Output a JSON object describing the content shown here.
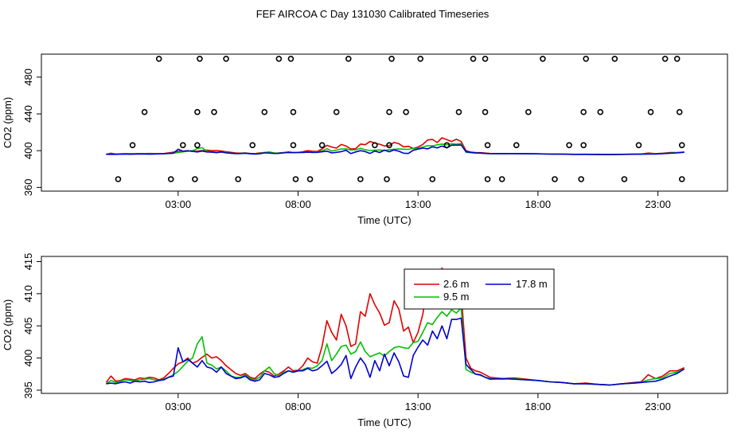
{
  "title": "FEF AIRCOA C  Day 131030  Calibrated Timeseries",
  "colors": {
    "series_2_6m": "#e00000",
    "series_9_5m": "#00c000",
    "series_17_8m": "#0000d0",
    "axis": "#000000"
  },
  "chart_data": [
    {
      "id": "top",
      "type": "line+scatter",
      "xlabel": "Time (UTC)",
      "ylabel": "CO2 (ppm)",
      "xlim": [
        -2.7,
        25.9
      ],
      "ylim": [
        356,
        505
      ],
      "xticks": [
        3,
        8,
        13,
        18,
        23
      ],
      "xtick_labels": [
        "03:00",
        "08:00",
        "13:00",
        "18:00",
        "23:00"
      ],
      "yticks": [
        360,
        400,
        440,
        480
      ],
      "ytick_labels": [
        "360",
        "400",
        "440",
        "480"
      ],
      "outliers": [
        {
          "x": 0.5,
          "y": 369
        },
        {
          "x": 1.1,
          "y": 406
        },
        {
          "x": 1.6,
          "y": 442
        },
        {
          "x": 2.2,
          "y": 500
        },
        {
          "x": 2.7,
          "y": 369
        },
        {
          "x": 3.2,
          "y": 406
        },
        {
          "x": 3.7,
          "y": 369
        },
        {
          "x": 3.8,
          "y": 406
        },
        {
          "x": 3.8,
          "y": 442
        },
        {
          "x": 3.9,
          "y": 500
        },
        {
          "x": 4.5,
          "y": 442
        },
        {
          "x": 5.0,
          "y": 500
        },
        {
          "x": 5.5,
          "y": 369
        },
        {
          "x": 6.1,
          "y": 406
        },
        {
          "x": 6.6,
          "y": 442
        },
        {
          "x": 7.2,
          "y": 500
        },
        {
          "x": 7.7,
          "y": 500
        },
        {
          "x": 7.8,
          "y": 442
        },
        {
          "x": 7.8,
          "y": 406
        },
        {
          "x": 7.9,
          "y": 369
        },
        {
          "x": 8.5,
          "y": 369
        },
        {
          "x": 9.0,
          "y": 406
        },
        {
          "x": 9.6,
          "y": 442
        },
        {
          "x": 10.1,
          "y": 500
        },
        {
          "x": 10.6,
          "y": 369
        },
        {
          "x": 11.2,
          "y": 406
        },
        {
          "x": 11.7,
          "y": 369
        },
        {
          "x": 11.8,
          "y": 406
        },
        {
          "x": 11.8,
          "y": 442
        },
        {
          "x": 11.9,
          "y": 500
        },
        {
          "x": 12.5,
          "y": 442
        },
        {
          "x": 13.1,
          "y": 500
        },
        {
          "x": 13.6,
          "y": 369
        },
        {
          "x": 14.2,
          "y": 406
        },
        {
          "x": 14.7,
          "y": 442
        },
        {
          "x": 15.3,
          "y": 500
        },
        {
          "x": 15.8,
          "y": 500
        },
        {
          "x": 15.8,
          "y": 442
        },
        {
          "x": 15.9,
          "y": 406
        },
        {
          "x": 15.9,
          "y": 369
        },
        {
          "x": 16.5,
          "y": 369
        },
        {
          "x": 17.1,
          "y": 406
        },
        {
          "x": 17.6,
          "y": 442
        },
        {
          "x": 18.2,
          "y": 500
        },
        {
          "x": 18.7,
          "y": 369
        },
        {
          "x": 19.3,
          "y": 406
        },
        {
          "x": 19.8,
          "y": 369
        },
        {
          "x": 19.9,
          "y": 406
        },
        {
          "x": 19.9,
          "y": 442
        },
        {
          "x": 20.0,
          "y": 500
        },
        {
          "x": 20.6,
          "y": 442
        },
        {
          "x": 21.2,
          "y": 500
        },
        {
          "x": 21.6,
          "y": 369
        },
        {
          "x": 22.2,
          "y": 406
        },
        {
          "x": 22.7,
          "y": 442
        },
        {
          "x": 23.3,
          "y": 500
        },
        {
          "x": 23.8,
          "y": 500
        },
        {
          "x": 23.9,
          "y": 442
        },
        {
          "x": 24.0,
          "y": 406
        },
        {
          "x": 24.0,
          "y": 369
        }
      ]
    },
    {
      "id": "bottom",
      "type": "line",
      "xlabel": "Time (UTC)",
      "ylabel": "CO2 (ppm)",
      "xlim": [
        -2.7,
        25.9
      ],
      "ylim": [
        394.5,
        415.8
      ],
      "xticks": [
        3,
        8,
        13,
        18,
        23
      ],
      "xtick_labels": [
        "03:00",
        "08:00",
        "13:00",
        "18:00",
        "23:00"
      ],
      "yticks": [
        395,
        400,
        405,
        410,
        415
      ],
      "ytick_labels": [
        "395",
        "400",
        "405",
        "410",
        "415"
      ],
      "legend": {
        "position": "top-center",
        "entries": [
          {
            "label": "2.6 m",
            "color": "#e00000"
          },
          {
            "label": "9.5 m",
            "color": "#00c000"
          },
          {
            "label": "17.8 m",
            "color": "#0000d0"
          }
        ]
      }
    }
  ],
  "series": [
    {
      "name": "2.6 m",
      "color": "#e00000",
      "x": [
        0.0,
        0.2,
        0.4,
        0.6,
        0.8,
        1.0,
        1.2,
        1.4,
        1.6,
        1.8,
        2.0,
        2.2,
        2.4,
        2.6,
        2.8,
        3.0,
        3.2,
        3.4,
        3.6,
        3.8,
        4.0,
        4.2,
        4.4,
        4.6,
        4.8,
        5.0,
        5.2,
        5.4,
        5.6,
        5.8,
        6.0,
        6.2,
        6.4,
        6.6,
        6.8,
        7.0,
        7.2,
        7.4,
        7.6,
        7.8,
        8.0,
        8.2,
        8.4,
        8.6,
        8.8,
        9.0,
        9.2,
        9.4,
        9.6,
        9.8,
        10.0,
        10.2,
        10.4,
        10.6,
        10.8,
        11.0,
        11.2,
        11.4,
        11.6,
        11.8,
        12.0,
        12.2,
        12.4,
        12.6,
        12.8,
        13.0,
        13.2,
        13.4,
        13.6,
        13.8,
        14.0,
        14.2,
        14.4,
        14.6,
        14.8,
        15.0,
        15.2,
        15.4,
        15.6,
        15.8,
        16.0,
        16.5,
        17.0,
        17.5,
        18.0,
        18.5,
        19.0,
        19.5,
        20.0,
        20.5,
        21.0,
        21.5,
        22.0,
        22.3,
        22.6,
        22.9,
        23.2,
        23.5,
        23.8,
        24.1
      ],
      "y": [
        396.2,
        397.2,
        396.4,
        396.5,
        396.8,
        396.7,
        396.6,
        396.9,
        396.8,
        397.0,
        396.9,
        396.6,
        396.9,
        397.6,
        398.4,
        399.1,
        399.4,
        400.0,
        399.2,
        399.5,
        400.1,
        400.6,
        400.0,
        400.2,
        399.6,
        398.8,
        398.2,
        397.6,
        397.3,
        397.6,
        397.0,
        396.8,
        397.5,
        398.0,
        397.8,
        397.2,
        397.5,
        398.0,
        398.6,
        398.0,
        398.1,
        398.8,
        400.0,
        399.4,
        399.2,
        401.8,
        405.8,
        404.0,
        402.8,
        406.8,
        405.0,
        401.8,
        402.2,
        407.2,
        406.5,
        410.0,
        408.3,
        407.0,
        405.1,
        405.5,
        408.9,
        407.6,
        404.2,
        404.8,
        402.4,
        404.0,
        406.8,
        411.6,
        412.3,
        408.8,
        414.0,
        412.0,
        410.0,
        412.4,
        410.0,
        400.0,
        398.4,
        398.0,
        397.8,
        397.4,
        397.0,
        396.8,
        396.9,
        396.7,
        396.5,
        396.3,
        396.2,
        396.0,
        396.1,
        395.9,
        395.8,
        396.0,
        396.2,
        396.3,
        397.4,
        396.8,
        397.2,
        398.0,
        398.0,
        398.5
      ]
    },
    {
      "name": "9.5 m",
      "color": "#00c000",
      "x": [
        0.0,
        0.2,
        0.4,
        0.6,
        0.8,
        1.0,
        1.2,
        1.4,
        1.6,
        1.8,
        2.0,
        2.2,
        2.4,
        2.6,
        2.8,
        3.0,
        3.2,
        3.4,
        3.6,
        3.8,
        4.0,
        4.2,
        4.4,
        4.6,
        4.8,
        5.0,
        5.2,
        5.4,
        5.6,
        5.8,
        6.0,
        6.2,
        6.4,
        6.6,
        6.8,
        7.0,
        7.2,
        7.4,
        7.6,
        7.8,
        8.0,
        8.2,
        8.4,
        8.6,
        8.8,
        9.0,
        9.2,
        9.4,
        9.6,
        9.8,
        10.0,
        10.2,
        10.4,
        10.6,
        10.8,
        11.0,
        11.2,
        11.4,
        11.6,
        11.8,
        12.0,
        12.2,
        12.4,
        12.6,
        12.8,
        13.0,
        13.2,
        13.4,
        13.6,
        13.8,
        14.0,
        14.2,
        14.4,
        14.6,
        14.8,
        15.0,
        15.2,
        15.4,
        15.6,
        15.8,
        16.0,
        16.5,
        17.0,
        17.5,
        18.0,
        18.5,
        19.0,
        19.5,
        20.0,
        20.5,
        21.0,
        21.5,
        22.0,
        22.3,
        22.6,
        22.9,
        23.2,
        23.5,
        23.8,
        24.1
      ],
      "y": [
        396.0,
        396.5,
        396.2,
        396.4,
        396.6,
        396.5,
        396.4,
        396.6,
        396.7,
        396.8,
        396.6,
        396.5,
        396.7,
        397.0,
        397.4,
        397.9,
        398.7,
        399.5,
        400.0,
        402.2,
        403.3,
        399.2,
        398.9,
        398.3,
        398.6,
        398.0,
        397.2,
        397.0,
        397.0,
        397.4,
        396.8,
        396.6,
        397.0,
        398.0,
        398.6,
        397.6,
        397.2,
        397.8,
        398.0,
        397.8,
        398.0,
        398.2,
        398.5,
        398.4,
        398.8,
        399.6,
        402.2,
        399.6,
        400.6,
        401.8,
        402.0,
        400.6,
        401.0,
        402.5,
        401.0,
        400.2,
        400.5,
        400.8,
        400.3,
        401.0,
        401.6,
        401.8,
        401.6,
        401.5,
        402.4,
        402.6,
        404.0,
        405.5,
        405.2,
        406.3,
        407.2,
        406.5,
        407.5,
        407.0,
        407.8,
        398.2,
        397.8,
        397.5,
        397.3,
        397.0,
        396.8,
        396.7,
        396.8,
        396.6,
        396.5,
        396.3,
        396.2,
        396.0,
        396.0,
        395.9,
        395.8,
        396.0,
        396.1,
        396.2,
        396.6,
        396.8,
        396.9,
        397.6,
        397.8,
        398.3
      ]
    },
    {
      "name": "17.8 m",
      "color": "#0000d0",
      "x": [
        0.0,
        0.2,
        0.4,
        0.6,
        0.8,
        1.0,
        1.2,
        1.4,
        1.6,
        1.8,
        2.0,
        2.2,
        2.4,
        2.6,
        2.8,
        3.0,
        3.2,
        3.4,
        3.6,
        3.8,
        4.0,
        4.2,
        4.4,
        4.6,
        4.8,
        5.0,
        5.2,
        5.4,
        5.6,
        5.8,
        6.0,
        6.2,
        6.4,
        6.6,
        6.8,
        7.0,
        7.2,
        7.4,
        7.6,
        7.8,
        8.0,
        8.2,
        8.4,
        8.6,
        8.8,
        9.0,
        9.2,
        9.4,
        9.6,
        9.8,
        10.0,
        10.2,
        10.4,
        10.6,
        10.8,
        11.0,
        11.2,
        11.4,
        11.6,
        11.8,
        12.0,
        12.2,
        12.4,
        12.6,
        12.8,
        13.0,
        13.2,
        13.4,
        13.6,
        13.8,
        14.0,
        14.2,
        14.4,
        14.6,
        14.8,
        15.0,
        15.2,
        15.4,
        15.6,
        15.8,
        16.0,
        16.5,
        17.0,
        17.5,
        18.0,
        18.5,
        19.0,
        19.5,
        20.0,
        20.5,
        21.0,
        21.5,
        22.0,
        22.3,
        22.6,
        22.9,
        23.2,
        23.5,
        23.8,
        24.1
      ],
      "y": [
        396.0,
        396.1,
        396.0,
        396.2,
        396.3,
        396.1,
        396.4,
        396.3,
        396.4,
        396.2,
        396.3,
        396.5,
        396.6,
        397.0,
        397.2,
        401.6,
        399.4,
        399.8,
        399.2,
        398.6,
        399.6,
        398.6,
        398.4,
        397.8,
        398.6,
        397.6,
        397.2,
        396.8,
        396.9,
        397.2,
        396.6,
        396.4,
        396.6,
        397.6,
        397.4,
        397.0,
        397.1,
        397.6,
        398.0,
        397.8,
        398.0,
        398.0,
        398.4,
        398.0,
        398.2,
        398.8,
        399.5,
        397.6,
        398.2,
        399.0,
        400.4,
        396.8,
        398.6,
        400.0,
        399.0,
        397.0,
        399.6,
        398.0,
        400.6,
        398.8,
        400.8,
        399.4,
        397.2,
        397.0,
        400.4,
        401.7,
        402.8,
        402.0,
        404.2,
        403.0,
        405.0,
        403.0,
        406.0,
        406.0,
        406.2,
        399.0,
        398.2,
        397.5,
        397.4,
        397.0,
        396.7,
        396.8,
        396.7,
        396.6,
        396.5,
        396.3,
        396.2,
        396.0,
        396.0,
        395.9,
        395.8,
        396.0,
        396.1,
        396.2,
        396.3,
        396.4,
        396.7,
        397.2,
        397.6,
        398.3
      ]
    }
  ]
}
